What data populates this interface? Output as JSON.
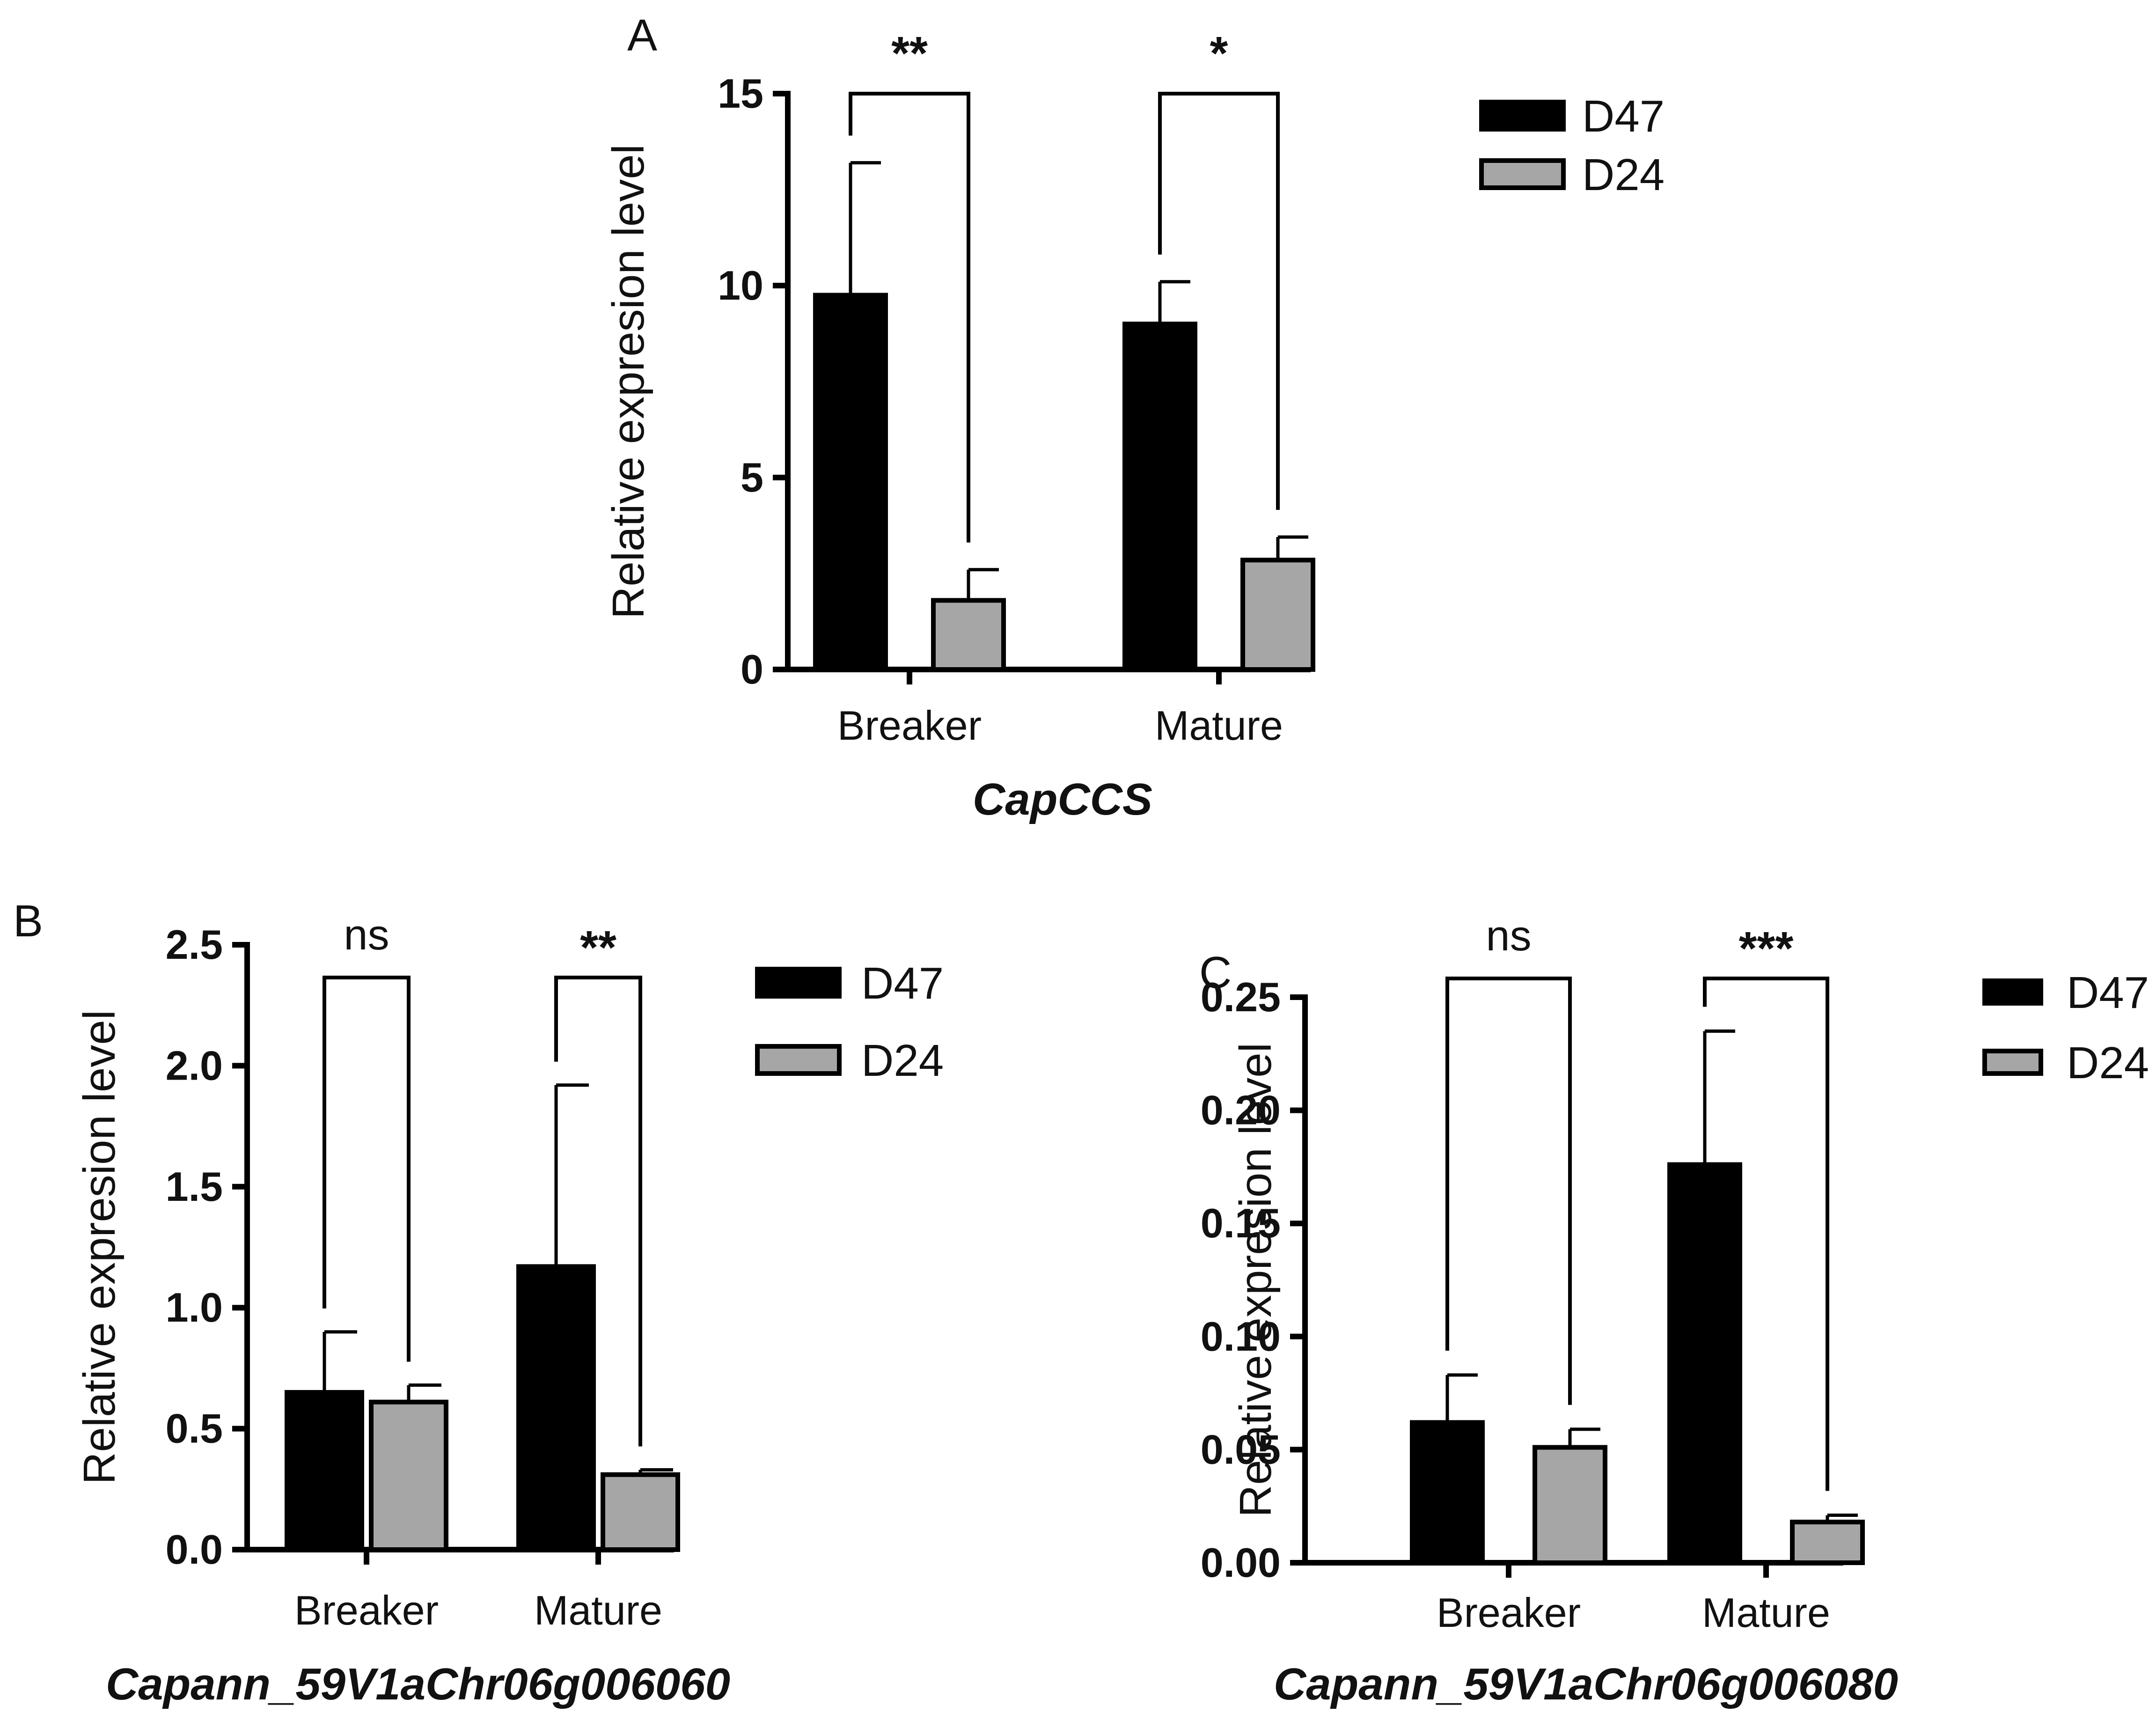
{
  "chart_data": [
    {
      "panel": "A",
      "type": "bar",
      "title": "CapCCS",
      "xlabel": "",
      "ylabel": "Relative expresion level",
      "categories": [
        "Breaker",
        "Mature"
      ],
      "ylim": [
        0,
        15
      ],
      "yticks": [
        "0",
        "5",
        "10",
        "15"
      ],
      "yticks_values": [
        0,
        5,
        10,
        15
      ],
      "series": [
        {
          "name": "D47",
          "values": [
            9.75,
            9.0
          ],
          "errors": [
            3.45,
            1.1
          ],
          "color": "#000000"
        },
        {
          "name": "D24",
          "values": [
            1.8,
            2.85
          ],
          "errors": [
            0.8,
            0.6
          ],
          "color": "#a6a6a6"
        }
      ],
      "significance": [
        "**",
        "*"
      ],
      "legend_placement": "top-right",
      "grid": false
    },
    {
      "panel": "B",
      "type": "bar",
      "title": "Capann_59V1aChr06g006060",
      "xlabel": "",
      "ylabel": "Relative expresion level",
      "categories": [
        "Breaker",
        "Mature"
      ],
      "ylim": [
        0,
        2.5
      ],
      "yticks": [
        "0.0",
        "0.5",
        "1.0",
        "1.5",
        "2.0",
        "2.5"
      ],
      "yticks_values": [
        0,
        0.5,
        1.0,
        1.5,
        2.0,
        2.5
      ],
      "series": [
        {
          "name": "D47",
          "values": [
            0.65,
            1.17
          ],
          "errors": [
            0.25,
            0.75
          ],
          "color": "#000000"
        },
        {
          "name": "D24",
          "values": [
            0.61,
            0.31
          ],
          "errors": [
            0.07,
            0.02
          ],
          "color": "#a6a6a6"
        }
      ],
      "significance": [
        "ns",
        "**"
      ],
      "legend_placement": "top-right",
      "grid": false
    },
    {
      "panel": "C",
      "type": "bar",
      "title": "Capann_59V1aChr06g006080",
      "xlabel": "",
      "ylabel": "Relative expresion level",
      "categories": [
        "Breaker",
        "Mature"
      ],
      "ylim": [
        0,
        0.25
      ],
      "yticks": [
        "0.00",
        "0.05",
        "0.10",
        "0.15",
        "0.20",
        "0.25"
      ],
      "yticks_values": [
        0,
        0.05,
        0.1,
        0.15,
        0.2,
        0.25
      ],
      "series": [
        {
          "name": "D47",
          "values": [
            0.062,
            0.176
          ],
          "errors": [
            0.021,
            0.059
          ],
          "color": "#000000"
        },
        {
          "name": "D24",
          "values": [
            0.051,
            0.018
          ],
          "errors": [
            0.008,
            0.003
          ],
          "color": "#a6a6a6"
        }
      ],
      "significance": [
        "ns",
        "***"
      ],
      "legend_placement": "top-right",
      "grid": false
    }
  ]
}
